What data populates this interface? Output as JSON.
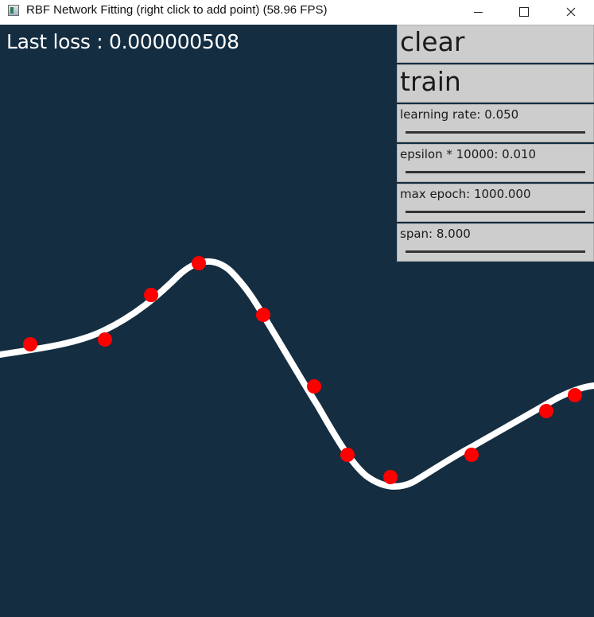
{
  "window": {
    "title": "RBF Network Fitting (right click to add point) (58.96 FPS)"
  },
  "canvas": {
    "background": "#142d41",
    "loss_text": "Last loss : 0.000000508",
    "curve_color": "#ffffff",
    "point_color": "#ff0000"
  },
  "panel": {
    "clear_label": "clear",
    "train_label": "train",
    "sliders": [
      {
        "label": "learning rate: 0.050",
        "value": 0.05
      },
      {
        "label": "epsilon * 10000: 0.010",
        "value": 0.01
      },
      {
        "label": "max epoch: 1000.000",
        "value": 1000.0
      },
      {
        "label": "span: 8.000",
        "value": 8.0
      }
    ]
  }
}
